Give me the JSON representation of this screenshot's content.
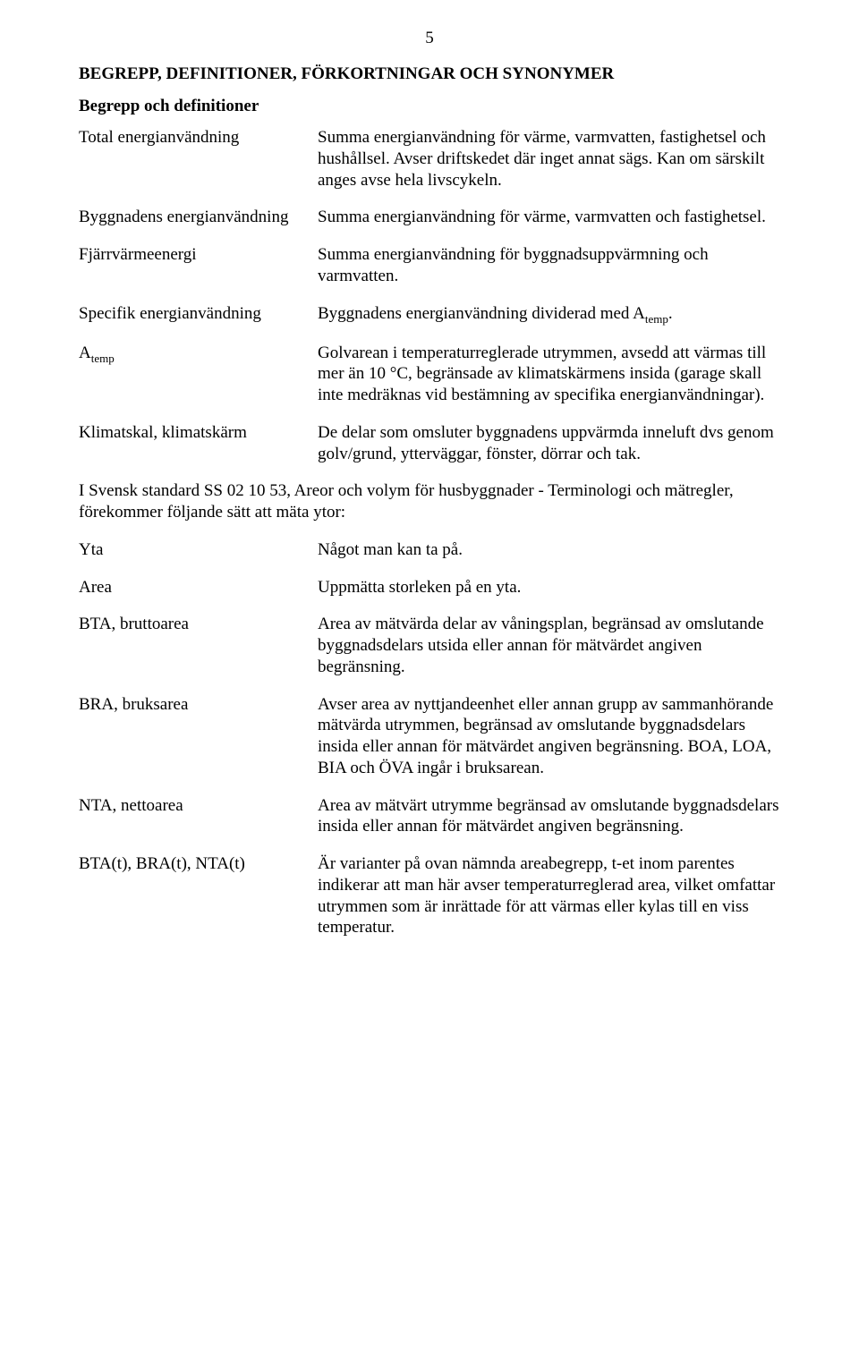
{
  "pageNumber": "5",
  "heading": "BEGREPP, DEFINITIONER, FÖRKORTNINGAR OCH SYNONYMER",
  "subheading": "Begrepp och definitioner",
  "defs1": [
    {
      "term": "Total energianvändning",
      "text": "Summa energianvändning för värme, varmvatten, fastighetsel och hushållsel. Avser driftskedet där inget annat sägs. Kan om särskilt anges avse hela livscykeln."
    },
    {
      "term": "Byggnadens energianvändning",
      "text": "Summa energianvändning för värme, varmvatten och fastighetsel."
    },
    {
      "term": "Fjärrvärmeenergi",
      "text": "Summa energianvändning för byggnadsuppvärmning och varmvatten."
    }
  ],
  "def_specifik_term": "Specifik energianvändning",
  "def_specifik_text_pre": "Byggnadens energianvändning dividerad med A",
  "def_specifik_text_sub": "temp",
  "def_specifik_text_post": ".",
  "def_atemp_term_pre": "A",
  "def_atemp_term_sub": "temp",
  "def_atemp_text": "Golvarean i temperaturreglerade utrymmen, avsedd att värmas till mer än 10 °C, begränsade av klimatskärmens insida (garage skall inte medräknas vid bestämning av specifika energianvändningar).",
  "def_klimatskal_term": "Klimatskal, klimatskärm",
  "def_klimatskal_text": "De delar som omsluter byggnadens uppvärmda inneluft dvs genom golv/grund, ytterväggar, fönster, dörrar och tak.",
  "midParagraph": "I Svensk standard SS 02 10 53, Areor och volym för husbyggnader - Terminologi och mätregler, förekommer följande sätt att mäta ytor:",
  "defs2": [
    {
      "term": "Yta",
      "text": "Något man kan ta på."
    },
    {
      "term": "Area",
      "text": "Uppmätta storleken på en yta."
    },
    {
      "term": "BTA, bruttoarea",
      "text": "Area av mätvärda delar av våningsplan, begränsad av omslutande byggnadsdelars utsida eller annan för mätvärdet angiven begränsning."
    },
    {
      "term": "BRA, bruksarea",
      "text": "Avser area av nyttjandeenhet eller annan grupp av sammanhörande mätvärda utrymmen, begränsad av omslutande byggnadsdelars insida eller annan för mätvärdet angiven begränsning. BOA, LOA, BIA och ÖVA ingår i bruksarean."
    },
    {
      "term": "NTA, nettoarea",
      "text": "Area av mätvärt utrymme begränsad av omslutande byggnadsdelars insida eller annan för mätvärdet angiven begränsning."
    },
    {
      "term": "BTA(t), BRA(t), NTA(t)",
      "text": "Är varianter på ovan nämnda areabegrepp, t-et inom parentes indikerar att man här avser temperaturreglerad area, vilket omfattar utrymmen som är inrättade för att värmas eller kylas till en viss temperatur."
    }
  ]
}
